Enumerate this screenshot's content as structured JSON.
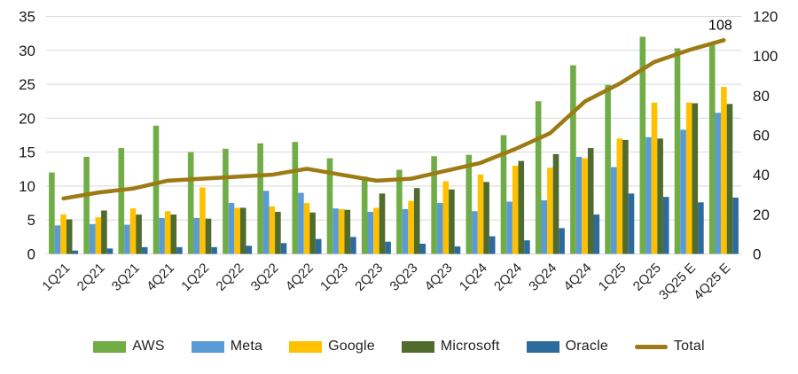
{
  "colors": {
    "background": "#FFFFFF",
    "gridline": "#D9D9D9",
    "axis_tick_text": "#1A1A1A",
    "x_label_text": "#262626",
    "annotation_text": "#000000"
  },
  "chart_data": {
    "type": "bar",
    "title": "",
    "categories": [
      "1Q21",
      "2Q21",
      "3Q21",
      "4Q21",
      "1Q22",
      "2Q22",
      "3Q22",
      "4Q22",
      "1Q23",
      "2Q23",
      "3Q23",
      "4Q23",
      "1Q24",
      "2Q24",
      "3Q24",
      "4Q24",
      "1Q25",
      "2Q25",
      "3Q25 E",
      "4Q25 E"
    ],
    "series": [
      {
        "name": "AWS",
        "type": "bar",
        "axis": "left",
        "color": "#70AD47",
        "values": [
          12.0,
          14.3,
          15.6,
          18.9,
          15.0,
          15.5,
          16.3,
          16.5,
          14.1,
          11.4,
          12.4,
          14.4,
          14.6,
          17.5,
          22.5,
          27.8,
          24.9,
          32.0,
          30.3,
          30.8
        ]
      },
      {
        "name": "Meta",
        "type": "bar",
        "axis": "left",
        "color": "#5B9BD5",
        "values": [
          4.2,
          4.4,
          4.3,
          5.3,
          5.3,
          7.5,
          9.3,
          9.0,
          6.7,
          6.2,
          6.6,
          7.5,
          6.3,
          7.7,
          7.9,
          14.3,
          12.8,
          17.2,
          18.3,
          20.8
        ]
      },
      {
        "name": "Google",
        "type": "bar",
        "axis": "left",
        "color": "#FFC000",
        "values": [
          5.8,
          5.4,
          6.7,
          6.3,
          9.8,
          6.8,
          7.0,
          7.5,
          6.6,
          6.8,
          7.8,
          10.7,
          11.7,
          13.0,
          12.7,
          14.1,
          17.0,
          22.3,
          22.3,
          24.6
        ]
      },
      {
        "name": "Microsoft",
        "type": "bar",
        "axis": "left",
        "color": "#4F6B2E",
        "values": [
          5.1,
          6.4,
          5.8,
          5.8,
          5.2,
          6.8,
          6.2,
          6.1,
          6.5,
          8.9,
          9.7,
          9.5,
          10.6,
          13.7,
          14.7,
          15.6,
          16.8,
          17.0,
          22.2,
          22.1
        ]
      },
      {
        "name": "Oracle",
        "type": "bar",
        "axis": "left",
        "color": "#2E6B9D",
        "values": [
          0.5,
          0.8,
          1.0,
          1.0,
          1.0,
          1.2,
          1.6,
          2.2,
          2.5,
          1.8,
          1.5,
          1.1,
          2.6,
          2.0,
          3.8,
          5.8,
          8.9,
          8.4,
          7.6,
          8.3
        ]
      },
      {
        "name": "Total",
        "type": "line",
        "axis": "right",
        "color": "#9C7A14",
        "values": [
          28,
          31,
          33,
          37,
          38,
          39,
          40,
          43,
          40,
          37,
          38,
          42,
          46,
          53,
          61,
          77,
          86,
          97,
          103,
          108
        ]
      }
    ],
    "left_axis": {
      "min": 0,
      "max": 35,
      "step": 5,
      "tick_labels": [
        "0",
        "5",
        "10",
        "15",
        "20",
        "25",
        "30",
        "35"
      ]
    },
    "right_axis": {
      "min": 0,
      "max": 120,
      "step": 20,
      "tick_labels": [
        "0",
        "20",
        "40",
        "60",
        "80",
        "100",
        "120"
      ]
    },
    "annotations": [
      {
        "text": "108",
        "series": "Total",
        "category_index": 19
      }
    ],
    "grid": true,
    "legend_position": "bottom",
    "x_label_rotation": -45
  }
}
